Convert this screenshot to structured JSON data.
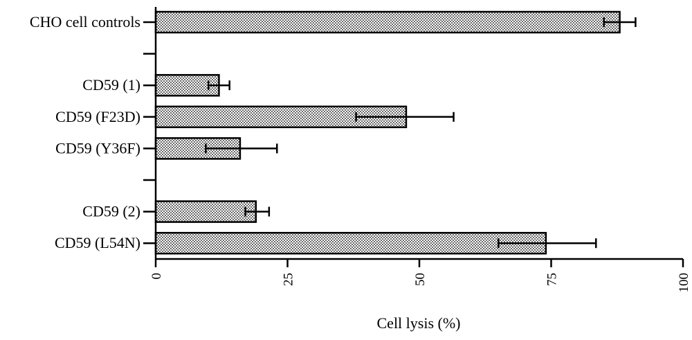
{
  "chart_data": {
    "type": "bar",
    "orientation": "horizontal",
    "title": "",
    "xlabel": "Cell lysis (%)",
    "ylabel": "",
    "xlim": [
      0,
      100
    ],
    "xticks": [
      "0",
      "25",
      "50",
      "75",
      "100"
    ],
    "grid": false,
    "legend": "none",
    "bar_pattern": "dotted",
    "bar_fill": "#d9d9d9",
    "categories": [
      "CHO cell controls",
      "",
      "CD59 (1)",
      "CD59 (F23D)",
      "CD59 (Y36F)",
      "",
      "CD59 (2)",
      "CD59 (L54N)"
    ],
    "values": [
      88,
      null,
      12,
      47.5,
      16,
      null,
      19,
      74
    ],
    "error_minus": [
      3,
      null,
      2,
      9.5,
      6.5,
      null,
      2,
      9
    ],
    "error_plus": [
      3,
      null,
      2,
      9,
      7,
      null,
      2.5,
      9.5
    ]
  }
}
